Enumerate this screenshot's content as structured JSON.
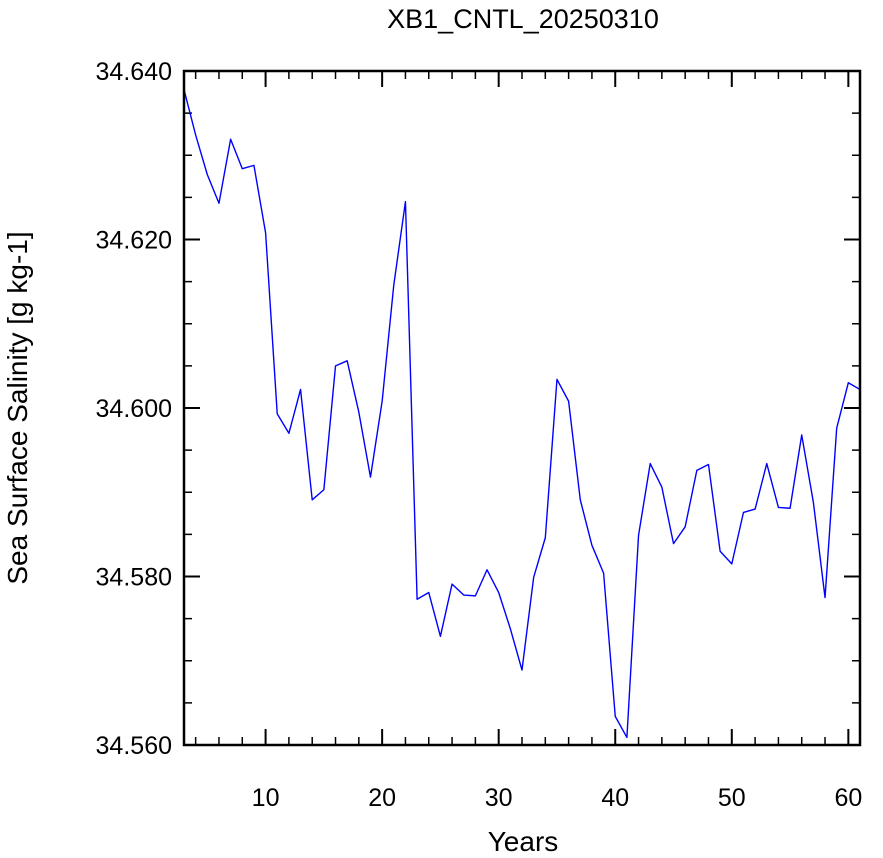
{
  "chart_data": {
    "type": "line",
    "title": "XB1_CNTL_20250310",
    "xlabel": "Years",
    "ylabel": "Sea Surface Salinity [g kg-1]",
    "xlim": [
      3,
      61
    ],
    "ylim": [
      34.56,
      34.64
    ],
    "x_ticks": [
      10,
      20,
      30,
      40,
      50,
      60
    ],
    "x_tick_labels": [
      "10",
      "20",
      "30",
      "40",
      "50",
      "60"
    ],
    "y_ticks": [
      34.56,
      34.58,
      34.6,
      34.62,
      34.64
    ],
    "y_tick_labels": [
      "34.560",
      "34.580",
      "34.600",
      "34.620",
      "34.640"
    ],
    "x_minor_step": 2,
    "y_minor_step": 0.005,
    "grid": false,
    "legend": "none",
    "series": [
      {
        "color": "#0000ff",
        "x": [
          3,
          4,
          5,
          6,
          7,
          8,
          9,
          10,
          11,
          12,
          13,
          14,
          15,
          16,
          17,
          18,
          19,
          20,
          21,
          22,
          23,
          24,
          25,
          26,
          27,
          28,
          29,
          30,
          31,
          32,
          33,
          34,
          35,
          36,
          37,
          38,
          39,
          40,
          41,
          42,
          43,
          44,
          45,
          46,
          47,
          48,
          49,
          50,
          51,
          52,
          53,
          54,
          55,
          56,
          57,
          58,
          59,
          60,
          61
        ],
        "values": [
          34.6378,
          34.6324,
          34.6277,
          34.6243,
          34.6319,
          34.6284,
          34.6288,
          34.6208,
          34.5993,
          34.597,
          34.6022,
          34.5891,
          34.5903,
          34.605,
          34.6056,
          34.5995,
          34.5918,
          34.6008,
          34.6146,
          34.6245,
          34.5773,
          34.5781,
          34.5729,
          34.5791,
          34.5778,
          34.5777,
          34.5808,
          34.5781,
          34.5738,
          34.5689,
          34.5799,
          34.5846,
          34.6034,
          34.6008,
          34.5891,
          34.5837,
          34.5804,
          34.5634,
          34.5609,
          34.5849,
          34.5934,
          34.5906,
          34.5839,
          34.5859,
          34.5926,
          34.5933,
          34.583,
          34.5815,
          34.5876,
          34.588,
          34.5934,
          34.5882,
          34.5881,
          34.5968,
          34.5888,
          34.5775,
          34.5976,
          34.603,
          34.6022
        ]
      }
    ]
  }
}
